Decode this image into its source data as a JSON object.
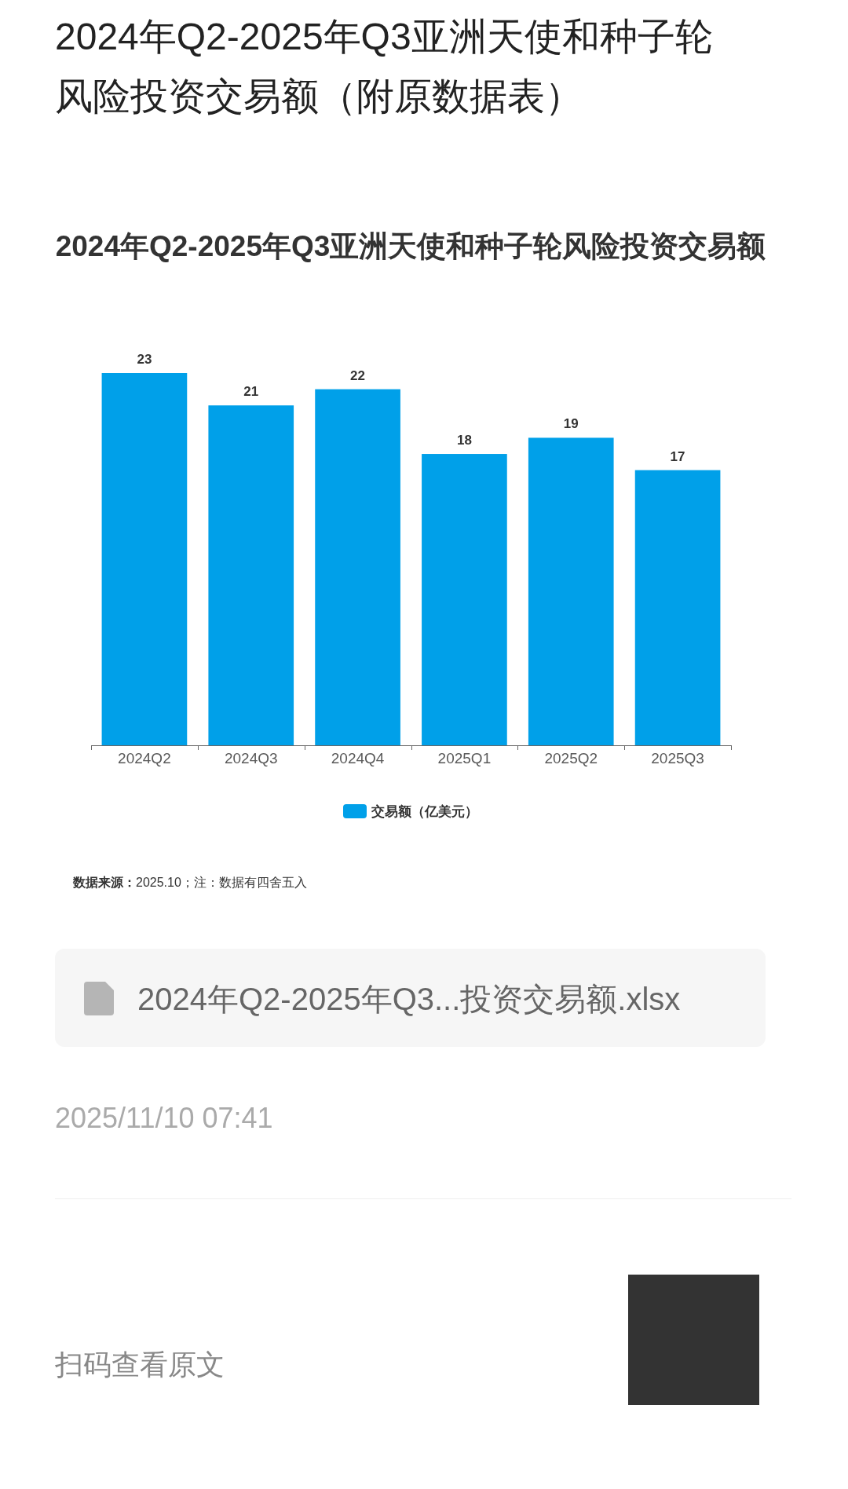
{
  "chart_data": {
    "type": "bar",
    "title": "2024年Q2-2025年Q3亚洲天使和种子轮风险投资交易额",
    "categories": [
      "2024Q2",
      "2024Q3",
      "2024Q4",
      "2025Q1",
      "2025Q2",
      "2025Q3"
    ],
    "series": [
      {
        "name": "交易额（亿美元）",
        "color": "#00a0e9",
        "values": [
          23,
          21,
          22,
          18,
          19,
          17
        ]
      }
    ],
    "data_labels": true,
    "legend": "bottom",
    "annotations": [
      "2024年Q2-2025年Q3亚洲天使和种子轮风险投资交易额（附原数据表）",
      "数据来源：2025.10；注：数据有四舍五入",
      "2024年Q2-2025年Q3...投资交易额.xlsx",
      "2025/11/10 07:41",
      "扫码查看原文"
    ]
  }
}
